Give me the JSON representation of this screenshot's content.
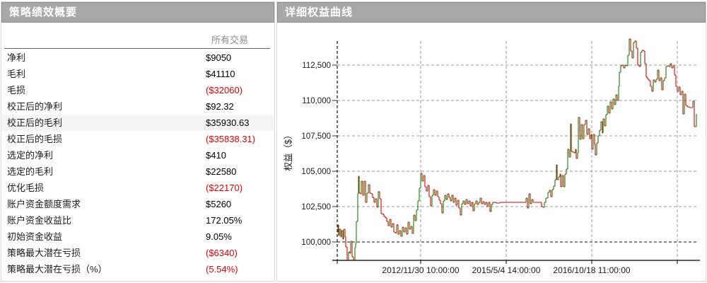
{
  "left_panel": {
    "title": "策略绩效概要",
    "column_header": "所有交易",
    "rows": [
      {
        "label": "净利",
        "value": "$9050",
        "negative": false,
        "highlighted": false
      },
      {
        "label": "毛利",
        "value": "$41110",
        "negative": false,
        "highlighted": false
      },
      {
        "label": "毛损",
        "value": "($32060)",
        "negative": true,
        "highlighted": false
      },
      {
        "label": "校正后的净利",
        "value": "$92.32",
        "negative": false,
        "highlighted": false
      },
      {
        "label": "校正后的毛利",
        "value": "$35930.63",
        "negative": false,
        "highlighted": true
      },
      {
        "label": "校正后的毛损",
        "value": "($35838.31)",
        "negative": true,
        "highlighted": false
      },
      {
        "label": "选定的净利",
        "value": "$410",
        "negative": false,
        "highlighted": false
      },
      {
        "label": "选定的毛利",
        "value": "$22580",
        "negative": false,
        "highlighted": false
      },
      {
        "label": "优化毛损",
        "value": "($22170)",
        "negative": true,
        "highlighted": false
      },
      {
        "label": "账户资金额度需求",
        "value": "$5260",
        "negative": false,
        "highlighted": false
      },
      {
        "label": "账户资金收益比",
        "value": "172.05%",
        "negative": false,
        "highlighted": false
      },
      {
        "label": "初始资金收益",
        "value": "9.05%",
        "negative": false,
        "highlighted": false
      },
      {
        "label": "策略最大潜在亏损",
        "value": "($6340)",
        "negative": true,
        "highlighted": false
      },
      {
        "label": "策略最大潜在亏损（%）",
        "value": "(5.54%)",
        "negative": true,
        "highlighted": false
      }
    ]
  },
  "right_panel": {
    "title": "详细权益曲线"
  },
  "colors": {
    "header_bg": "#a8a8a8",
    "header_text": "#ffffff",
    "negative_text": "#e00000",
    "line_down": "#e00000",
    "line_up": "#008800",
    "grid": "#999999",
    "baseline": "#111111",
    "row_highlight": "#f4f4f4",
    "column_header_text": "#8c8c8c"
  },
  "chart_data": {
    "type": "line",
    "title": "详细权益曲线",
    "ylabel": "权益（$）",
    "xlabel": "",
    "y_ticks": [
      100000,
      102500,
      105000,
      107500,
      110000,
      112500
    ],
    "ylim": [
      98700,
      114400
    ],
    "x_tick_labels": [
      "2012/11/30 10:00:00",
      "2015/5/4 14:00:00",
      "2016/10/18 11:00:00"
    ],
    "grid": "dashed",
    "legend": false,
    "baseline_value": 100000,
    "x_unit": "screen_px",
    "note": "equity step-curve; up-moves green, down-moves red; values estimated from gridlines",
    "series": [
      {
        "name": "equity",
        "points": [
          [
            477,
            100700
          ],
          [
            478,
            101200
          ],
          [
            479,
            100450
          ],
          [
            480,
            100900
          ],
          [
            482,
            100350
          ],
          [
            483,
            100800
          ],
          [
            485,
            100200
          ],
          [
            486,
            100900
          ],
          [
            488,
            100350
          ],
          [
            489,
            99650
          ],
          [
            491,
            98650
          ],
          [
            493,
            99300
          ],
          [
            495,
            99200
          ],
          [
            496,
            100050
          ],
          [
            498,
            98950
          ],
          [
            500,
            98700
          ],
          [
            502,
            99600
          ],
          [
            503,
            99900
          ],
          [
            504,
            101450
          ],
          [
            506,
            103400
          ],
          [
            507,
            104650
          ],
          [
            508,
            103450
          ],
          [
            510,
            103400
          ],
          [
            511,
            104300
          ],
          [
            513,
            103300
          ],
          [
            515,
            104300
          ],
          [
            517,
            102800
          ],
          [
            519,
            103450
          ],
          [
            521,
            104050
          ],
          [
            523,
            103450
          ],
          [
            525,
            103400
          ],
          [
            527,
            103135
          ],
          [
            529,
            102800
          ],
          [
            531,
            103050
          ],
          [
            533,
            102465
          ],
          [
            535,
            103550
          ],
          [
            537,
            103050
          ],
          [
            539,
            102000
          ],
          [
            541,
            101965
          ],
          [
            543,
            101800
          ],
          [
            545,
            101715
          ],
          [
            547,
            101450
          ],
          [
            549,
            101150
          ],
          [
            551,
            101600
          ],
          [
            553,
            101050
          ],
          [
            555,
            101300
          ],
          [
            557,
            100700
          ],
          [
            559,
            100635
          ],
          [
            561,
            101215
          ],
          [
            563,
            100550
          ],
          [
            565,
            100800
          ],
          [
            567,
            100400
          ],
          [
            569,
            101050
          ],
          [
            571,
            100700
          ],
          [
            573,
            101000
          ],
          [
            575,
            100550
          ],
          [
            577,
            101400
          ],
          [
            579,
            100900
          ],
          [
            581,
            101100
          ],
          [
            583,
            100600
          ],
          [
            585,
            101900
          ],
          [
            587,
            101500
          ],
          [
            589,
            102250
          ],
          [
            591,
            102900
          ],
          [
            593,
            103800
          ],
          [
            595,
            104850
          ],
          [
            597,
            104300
          ],
          [
            599,
            104700
          ],
          [
            601,
            103900
          ],
          [
            603,
            103600
          ],
          [
            605,
            104000
          ],
          [
            607,
            103200
          ],
          [
            609,
            102550
          ],
          [
            611,
            103300
          ],
          [
            613,
            103700
          ],
          [
            615,
            103300
          ],
          [
            617,
            103600
          ],
          [
            619,
            103200
          ],
          [
            621,
            102950
          ],
          [
            623,
            102700
          ],
          [
            625,
            102050
          ],
          [
            627,
            102900
          ],
          [
            629,
            103300
          ],
          [
            631,
            103000
          ],
          [
            633,
            103400
          ],
          [
            635,
            103150
          ],
          [
            637,
            102900
          ],
          [
            639,
            103300
          ],
          [
            641,
            102800
          ],
          [
            643,
            103100
          ],
          [
            645,
            102600
          ],
          [
            647,
            102950
          ],
          [
            649,
            102400
          ],
          [
            651,
            101900
          ],
          [
            653,
            102700
          ],
          [
            655,
            102900
          ],
          [
            657,
            102650
          ],
          [
            659,
            103000
          ],
          [
            661,
            102700
          ],
          [
            663,
            102900
          ],
          [
            665,
            102550
          ],
          [
            667,
            102800
          ],
          [
            669,
            102200
          ],
          [
            671,
            102700
          ],
          [
            673,
            102900
          ],
          [
            675,
            102650
          ],
          [
            677,
            102800
          ],
          [
            679,
            103100
          ],
          [
            681,
            102700
          ],
          [
            683,
            102850
          ],
          [
            685,
            102650
          ],
          [
            687,
            102800
          ],
          [
            689,
            102500
          ],
          [
            691,
            102800
          ],
          [
            693,
            102150
          ],
          [
            695,
            102650
          ],
          [
            697,
            102800
          ],
          [
            702,
            102750
          ],
          [
            707,
            102800
          ],
          [
            712,
            102800
          ],
          [
            717,
            102800
          ],
          [
            722,
            102800
          ],
          [
            727,
            102800
          ],
          [
            732,
            102800
          ],
          [
            737,
            102800
          ],
          [
            742,
            102800
          ],
          [
            744,
            103100
          ],
          [
            746,
            102400
          ],
          [
            748,
            103400
          ],
          [
            750,
            102700
          ],
          [
            752,
            103000
          ],
          [
            754,
            102800
          ],
          [
            758,
            102800
          ],
          [
            762,
            102800
          ],
          [
            766,
            102500
          ],
          [
            768,
            102450
          ],
          [
            770,
            102800
          ],
          [
            772,
            103100
          ],
          [
            775,
            103500
          ],
          [
            777,
            103650
          ],
          [
            779,
            103200
          ],
          [
            781,
            103700
          ],
          [
            783,
            103950
          ],
          [
            785,
            104400
          ],
          [
            787,
            105450
          ],
          [
            788,
            104400
          ],
          [
            790,
            104600
          ],
          [
            792,
            104800
          ],
          [
            793,
            103900
          ],
          [
            795,
            104700
          ],
          [
            797,
            103900
          ],
          [
            799,
            104800
          ],
          [
            801,
            105150
          ],
          [
            803,
            106550
          ],
          [
            805,
            106000
          ],
          [
            807,
            108350
          ],
          [
            808,
            106400
          ],
          [
            810,
            106350
          ],
          [
            812,
            106300
          ],
          [
            814,
            106550
          ],
          [
            815,
            105900
          ],
          [
            817,
            106300
          ],
          [
            818,
            108800
          ],
          [
            820,
            107250
          ],
          [
            822,
            108300
          ],
          [
            824,
            107300
          ],
          [
            826,
            108300
          ],
          [
            828,
            108600
          ],
          [
            830,
            107600
          ],
          [
            832,
            108000
          ],
          [
            834,
            107300
          ],
          [
            836,
            107600
          ],
          [
            837,
            106550
          ],
          [
            839,
            107600
          ],
          [
            841,
            106900
          ],
          [
            842,
            106150
          ],
          [
            844,
            107000
          ],
          [
            846,
            107500
          ],
          [
            848,
            107900
          ],
          [
            850,
            108500
          ],
          [
            852,
            107700
          ],
          [
            853,
            108700
          ],
          [
            855,
            108200
          ],
          [
            857,
            109000
          ],
          [
            859,
            109600
          ],
          [
            861,
            109100
          ],
          [
            863,
            109900
          ],
          [
            865,
            109400
          ],
          [
            867,
            110100
          ],
          [
            869,
            109700
          ],
          [
            871,
            110400
          ],
          [
            873,
            110000
          ],
          [
            875,
            111000
          ],
          [
            876,
            112000
          ],
          [
            878,
            112450
          ],
          [
            880,
            112500
          ],
          [
            882,
            112300
          ],
          [
            884,
            112500
          ],
          [
            886,
            112450
          ],
          [
            888,
            113200
          ],
          [
            890,
            114350
          ],
          [
            892,
            113500
          ],
          [
            894,
            113000
          ],
          [
            896,
            114100
          ],
          [
            898,
            114200
          ],
          [
            900,
            113700
          ],
          [
            902,
            112500
          ],
          [
            904,
            112400
          ],
          [
            906,
            113400
          ],
          [
            908,
            113550
          ],
          [
            910,
            113500
          ],
          [
            912,
            112600
          ],
          [
            914,
            111650
          ],
          [
            916,
            111500
          ],
          [
            918,
            111400
          ],
          [
            920,
            111000
          ],
          [
            922,
            110650
          ],
          [
            924,
            111450
          ],
          [
            926,
            111300
          ],
          [
            928,
            111500
          ],
          [
            930,
            112150
          ],
          [
            932,
            111400
          ],
          [
            934,
            111600
          ],
          [
            936,
            110750
          ],
          [
            938,
            111400
          ],
          [
            940,
            111600
          ],
          [
            942,
            112400
          ],
          [
            944,
            112450
          ],
          [
            946,
            112400
          ],
          [
            948,
            112600
          ],
          [
            950,
            112300
          ],
          [
            952,
            112450
          ],
          [
            954,
            111800
          ],
          [
            956,
            111000
          ],
          [
            958,
            110650
          ],
          [
            960,
            110950
          ],
          [
            962,
            110400
          ],
          [
            964,
            110650
          ],
          [
            966,
            109050
          ],
          [
            968,
            110450
          ],
          [
            970,
            109650
          ],
          [
            972,
            109550
          ],
          [
            975,
            109500
          ],
          [
            978,
            109500
          ],
          [
            980,
            109950
          ],
          [
            982,
            108150
          ],
          [
            985,
            109050
          ]
        ]
      }
    ]
  }
}
